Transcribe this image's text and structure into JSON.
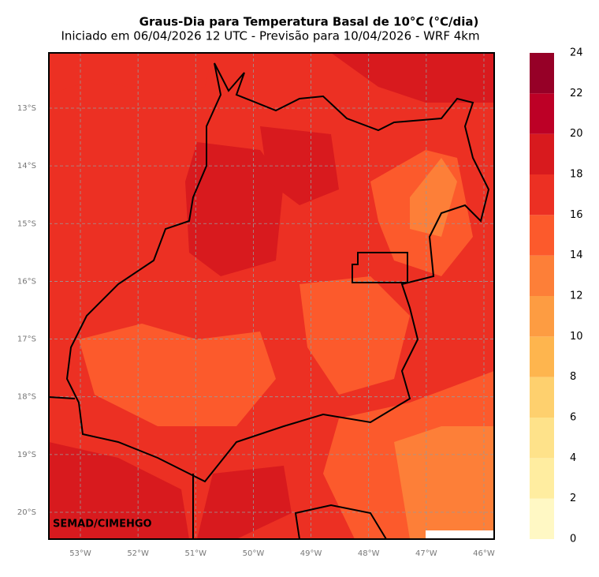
{
  "title": "Graus-Dia para Temperatura Basal de 10°C (°C/dia)",
  "subtitle": "Iniciado em 06/04/2026 12 UTC - Previsão para 10/04/2026 - WRF 4km",
  "credit": "SEMAD/CIMEHGO",
  "map": {
    "lat_ticks": [
      {
        "value": -13,
        "label": "13°S"
      },
      {
        "value": -14,
        "label": "14°S"
      },
      {
        "value": -15,
        "label": "15°S"
      },
      {
        "value": -16,
        "label": "16°S"
      },
      {
        "value": -17,
        "label": "17°S"
      },
      {
        "value": -18,
        "label": "18°S"
      },
      {
        "value": -19,
        "label": "19°S"
      },
      {
        "value": -20,
        "label": "20°S"
      }
    ],
    "lon_ticks": [
      {
        "value": -53,
        "label": "53°W"
      },
      {
        "value": -52,
        "label": "52°W"
      },
      {
        "value": -51,
        "label": "51°W"
      },
      {
        "value": -50,
        "label": "50°W"
      },
      {
        "value": -49,
        "label": "49°W"
      },
      {
        "value": -48,
        "label": "48°W"
      },
      {
        "value": -47,
        "label": "47°W"
      },
      {
        "value": -46,
        "label": "46°W"
      }
    ]
  },
  "colorbar": {
    "levels": [
      0,
      2,
      4,
      6,
      8,
      10,
      12,
      14,
      16,
      18,
      20,
      22,
      24
    ],
    "colors": [
      "#fff8c4",
      "#ffeda0",
      "#fee28a",
      "#fed06e",
      "#feb54e",
      "#fd9c42",
      "#fd7f38",
      "#fc5a2c",
      "#ec3023",
      "#d81a1e",
      "#bd0026",
      "#960027"
    ]
  }
}
